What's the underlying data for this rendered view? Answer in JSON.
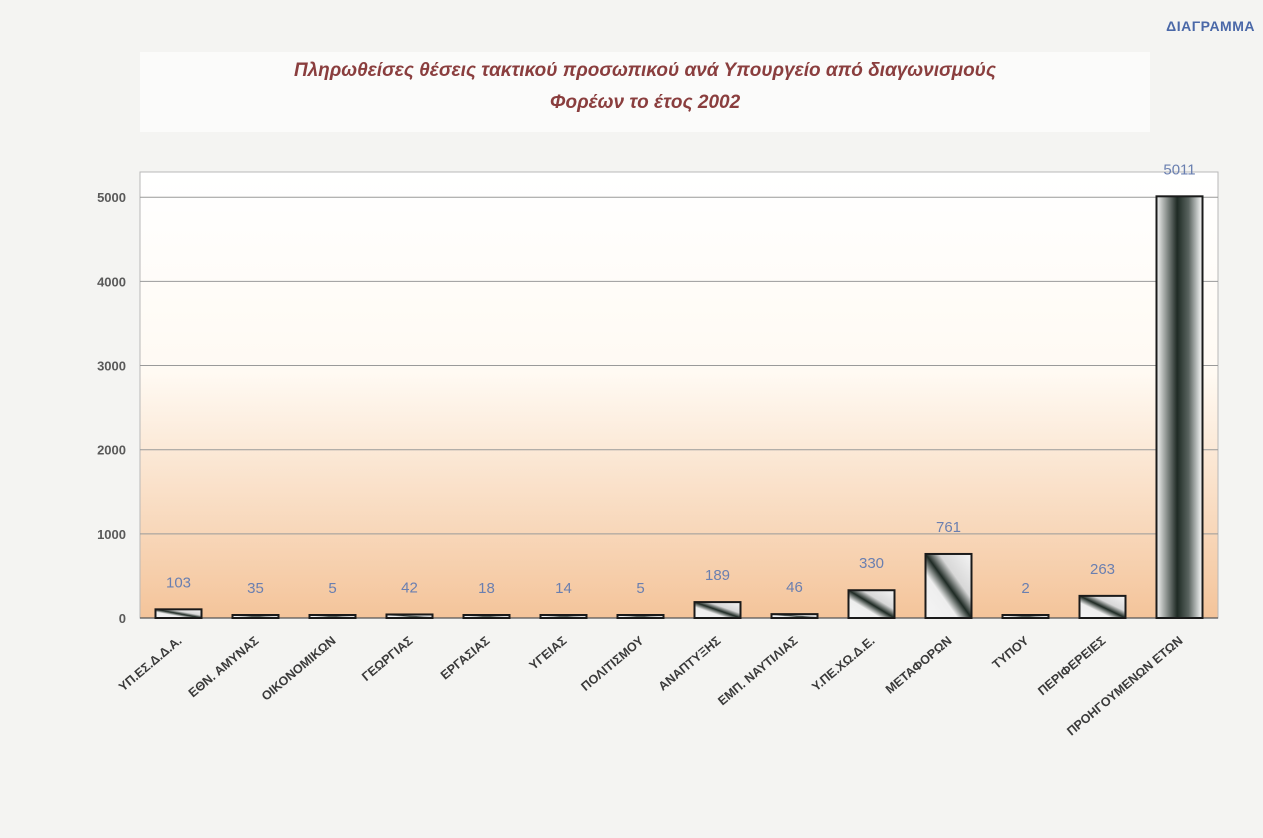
{
  "header": {
    "corner_label": "ΔΙΑΓΡΑΜΜΑ"
  },
  "chart_data": {
    "type": "bar",
    "title": "Πληρωθείσες θέσεις τακτικού προσωπικού ανά Υπουργείο από διαγωνισμούς Φορέων το έτος 2002",
    "title_lines": [
      "Πληρωθείσες θέσεις τακτικού προσωπικού ανά Υπουργείο από διαγωνισμούς",
      "Φορέων το έτος 2002"
    ],
    "categories": [
      "ΥΠ.ΕΣ.Δ.Δ.Α.",
      "ΕΘΝ. ΑΜΥΝΑΣ",
      "ΟΙΚΟΝΟΜΙΚΩΝ",
      "ΓΕΩΡΓΙΑΣ",
      "ΕΡΓΑΣΙΑΣ",
      "ΥΓΕΙΑΣ",
      "ΠΟΛΙΤΙΣΜΟΥ",
      "ΑΝΑΠΤΥΞΗΣ",
      "ΕΜΠ. ΝΑΥΤΙΛΙΑΣ",
      "Υ.ΠΕ.ΧΩ.Δ.Ε.",
      "ΜΕΤΑΦΟΡΩΝ",
      "ΤΥΠΟΥ",
      "ΠΕΡΙΦΕΡΕΙΕΣ",
      "ΠΡΟΗΓΟΥΜΕΝΩΝ ΕΤΩΝ"
    ],
    "values": [
      103,
      35,
      5,
      42,
      18,
      14,
      5,
      189,
      46,
      330,
      761,
      2,
      263,
      5011
    ],
    "value_labels": [
      "103",
      "35",
      "5",
      "42",
      "18",
      "14",
      "5",
      "189",
      "46",
      "330",
      "761",
      "2",
      "263",
      "5011"
    ],
    "xlabel": "",
    "ylabel": "",
    "ylim": [
      0,
      5300
    ],
    "yticks": [
      0,
      1000,
      2000,
      3000,
      4000,
      5000
    ],
    "ytick_labels": [
      "0",
      "1000",
      "2000",
      "3000",
      "4000",
      "5000"
    ],
    "grid": true,
    "legend": "none",
    "colors": {
      "bar_dark": "#1e2a24",
      "bar_light": "#f5f5f5",
      "value_label": "#6a7fb0",
      "title": "#8a3e3e",
      "plot_bg_top": "#ffffff",
      "plot_bg_bottom": "#f4c49a"
    }
  }
}
